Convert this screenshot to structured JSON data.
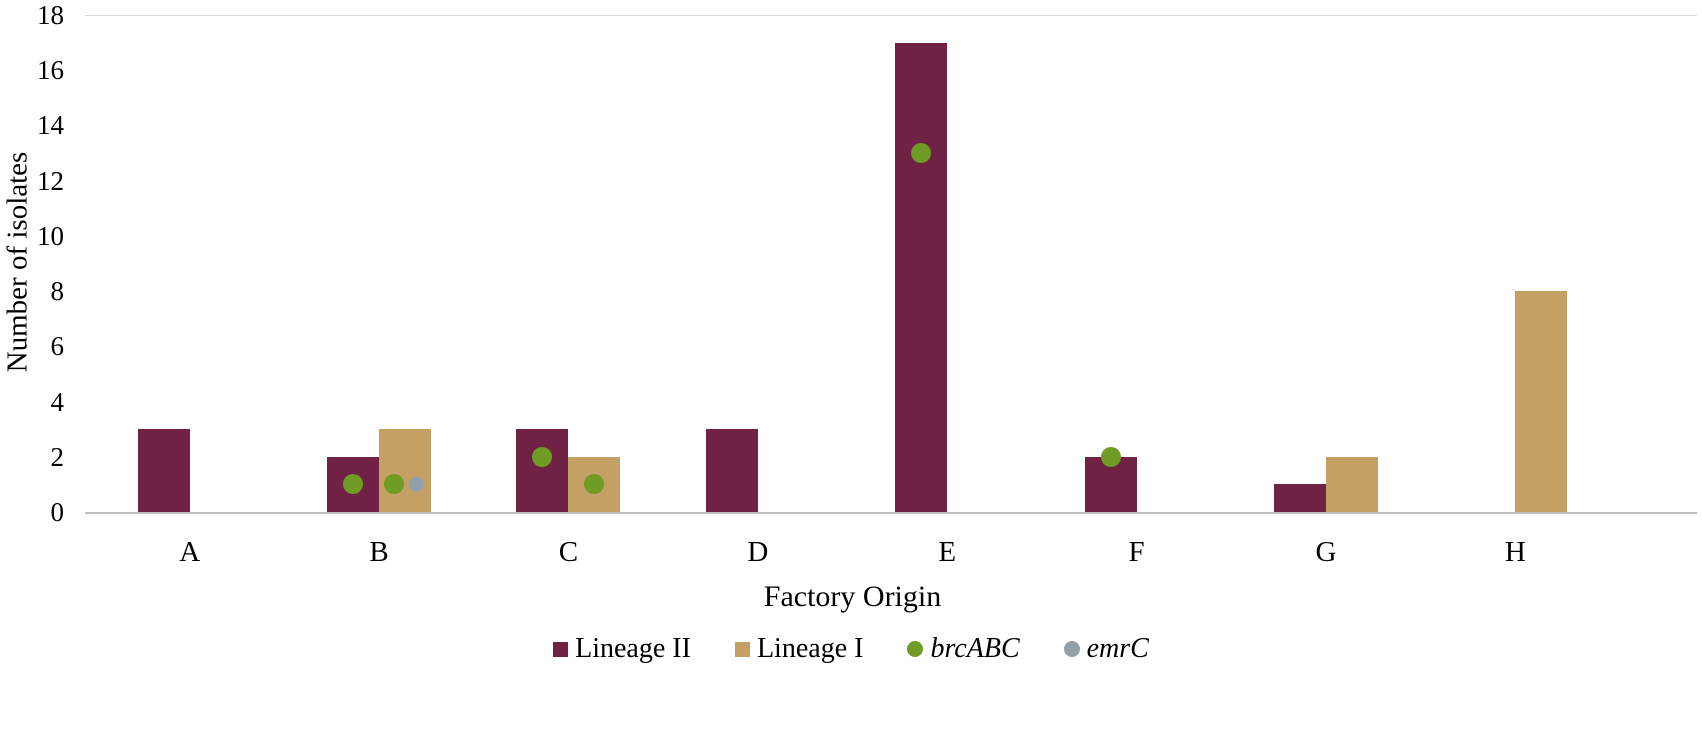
{
  "colors": {
    "lineage_ii": "#6F2243",
    "lineage_i": "#C5A065",
    "brcABC": "#6E9C24",
    "emrC": "#92A0AA",
    "baseline": "#BFBFBF",
    "gridline": "#D9D9D9"
  },
  "chart_data": {
    "type": "bar",
    "title": "",
    "xlabel": "Factory Origin",
    "ylabel": "Number of isolates",
    "ylim": [
      0,
      18
    ],
    "yticks": [
      0,
      2,
      4,
      6,
      8,
      10,
      12,
      14,
      16,
      18
    ],
    "grid": "top-line-only",
    "legend_position": "bottom-center",
    "categories": [
      "A",
      "B",
      "C",
      "D",
      "E",
      "F",
      "G",
      "H"
    ],
    "series": [
      {
        "name": "Lineage II",
        "color_key": "lineage_ii",
        "values": [
          3,
          2,
          3,
          3,
          17,
          2,
          1,
          0
        ]
      },
      {
        "name": "Lineage I",
        "color_key": "lineage_i",
        "values": [
          0,
          3,
          2,
          0,
          0,
          0,
          2,
          8
        ]
      }
    ],
    "markers": [
      {
        "name": "brcABC",
        "color_key": "brcABC",
        "points": [
          {
            "category": "B",
            "series": "Lineage II",
            "y": 1,
            "dx": 0
          },
          {
            "category": "B",
            "series": "Lineage I",
            "y": 1,
            "dx": -11
          },
          {
            "category": "C",
            "series": "Lineage II",
            "y": 2,
            "dx": 0
          },
          {
            "category": "C",
            "series": "Lineage I",
            "y": 1,
            "dx": 0
          },
          {
            "category": "E",
            "series": "Lineage II",
            "y": 13,
            "dx": 0
          },
          {
            "category": "F",
            "series": "Lineage II",
            "y": 2,
            "dx": 0
          }
        ]
      },
      {
        "name": "emrC",
        "color_key": "emrC",
        "points": [
          {
            "category": "B",
            "series": "Lineage I",
            "y": 1,
            "dx": 11
          }
        ]
      }
    ],
    "legend": [
      {
        "label": "Lineage II",
        "type": "square",
        "color_key": "lineage_ii",
        "italic": false
      },
      {
        "label": "Lineage I",
        "type": "square",
        "color_key": "lineage_i",
        "italic": false
      },
      {
        "label": "brcABC",
        "type": "circle",
        "color_key": "brcABC",
        "italic": true
      },
      {
        "label": "emrC",
        "type": "circle",
        "color_key": "emrC",
        "italic": true
      }
    ]
  }
}
